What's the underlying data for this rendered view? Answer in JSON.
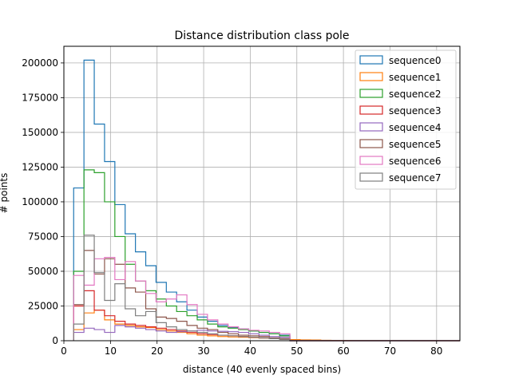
{
  "chart_data": {
    "type": "histogram",
    "title": "Distance distribution class pole",
    "xlabel": "distance (40 evenly spaced bins)",
    "ylabel": "# points",
    "xlim": [
      0,
      85
    ],
    "ylim": [
      0,
      212000
    ],
    "xticks": [
      0,
      10,
      20,
      30,
      40,
      50,
      60,
      70,
      80
    ],
    "yticks": [
      0,
      25000,
      50000,
      75000,
      100000,
      125000,
      150000,
      175000,
      200000
    ],
    "grid": true,
    "legend_position": "top-right",
    "bin_edges": [
      2.1,
      4.31,
      6.52,
      8.73,
      10.94,
      13.15,
      15.36,
      17.57,
      19.78,
      21.99,
      24.2,
      26.41,
      28.62,
      30.83,
      33.04,
      35.25,
      37.46,
      39.67,
      41.88,
      44.09,
      46.3,
      48.51,
      50.72,
      52.93,
      55.14,
      57.35,
      59.56,
      61.77,
      63.98,
      66.19,
      68.4,
      70.61,
      72.82,
      75.03,
      77.24,
      79.45,
      81.66,
      83.87,
      86.08,
      88.29,
      90.5
    ],
    "series": [
      {
        "name": "sequence0",
        "color": "#1f77b4",
        "values": [
          110000,
          202000,
          156000,
          129000,
          98000,
          77000,
          64000,
          54000,
          42000,
          35000,
          28000,
          22000,
          17000,
          14000,
          11000,
          9500,
          8500,
          7000,
          6000,
          5000,
          4000,
          0,
          0,
          0,
          0,
          0,
          0,
          0,
          0,
          0,
          0,
          0,
          0,
          0,
          0,
          0,
          0,
          0,
          0,
          0
        ]
      },
      {
        "name": "sequence1",
        "color": "#ff7f0e",
        "values": [
          8000,
          20000,
          22000,
          15000,
          12000,
          11000,
          10000,
          9500,
          8000,
          7000,
          6000,
          5000,
          4000,
          3500,
          3000,
          2700,
          2500,
          2200,
          1900,
          1600,
          1300,
          800,
          600,
          500,
          300,
          200,
          150,
          100,
          80,
          60,
          50,
          40,
          30,
          20,
          10,
          5,
          0,
          0,
          0,
          0
        ]
      },
      {
        "name": "sequence2",
        "color": "#2ca02c",
        "values": [
          50000,
          123000,
          121000,
          100000,
          75000,
          55000,
          43000,
          36000,
          30000,
          25000,
          21000,
          18000,
          15000,
          12000,
          10000,
          9000,
          8000,
          7000,
          6000,
          5000,
          3500,
          0,
          0,
          0,
          0,
          0,
          0,
          0,
          0,
          0,
          0,
          0,
          0,
          0,
          0,
          0,
          0,
          0,
          0,
          0
        ]
      },
      {
        "name": "sequence3",
        "color": "#d62728",
        "values": [
          25000,
          36000,
          22000,
          18000,
          14000,
          12000,
          11000,
          10000,
          9000,
          8000,
          7000,
          6000,
          5000,
          4500,
          4000,
          3500,
          3000,
          2500,
          2000,
          1500,
          1000,
          0,
          0,
          0,
          0,
          0,
          0,
          0,
          0,
          0,
          0,
          0,
          0,
          0,
          0,
          0,
          0,
          0,
          0,
          0
        ]
      },
      {
        "name": "sequence4",
        "color": "#9467bd",
        "values": [
          6000,
          9000,
          8000,
          6000,
          11000,
          10000,
          9000,
          8000,
          7000,
          6000,
          6500,
          7000,
          7500,
          7000,
          6800,
          6500,
          6000,
          5000,
          4000,
          3000,
          2500,
          0,
          0,
          0,
          0,
          0,
          0,
          0,
          0,
          0,
          0,
          0,
          0,
          0,
          0,
          0,
          0,
          0,
          0,
          0
        ]
      },
      {
        "name": "sequence5",
        "color": "#8c564b",
        "values": [
          26000,
          65000,
          48000,
          59000,
          55000,
          38000,
          35000,
          23000,
          17000,
          16000,
          14000,
          11000,
          9000,
          8000,
          6000,
          5000,
          4000,
          3500,
          3000,
          2000,
          1500,
          0,
          0,
          0,
          0,
          0,
          0,
          0,
          0,
          0,
          0,
          0,
          0,
          0,
          0,
          0,
          0,
          0,
          0,
          0
        ]
      },
      {
        "name": "sequence6",
        "color": "#e377c2",
        "values": [
          47000,
          40000,
          59000,
          60000,
          44000,
          57000,
          43000,
          34000,
          28000,
          30000,
          33000,
          26000,
          19000,
          15000,
          12000,
          10000,
          8500,
          7500,
          7000,
          6000,
          5000,
          0,
          0,
          0,
          0,
          0,
          0,
          0,
          0,
          0,
          0,
          0,
          0,
          0,
          0,
          0,
          0,
          0,
          0,
          0
        ]
      },
      {
        "name": "sequence7",
        "color": "#7f7f7f",
        "values": [
          12000,
          76000,
          49000,
          29000,
          41000,
          23000,
          18000,
          21000,
          13000,
          10000,
          8000,
          7000,
          6000,
          5000,
          4000,
          3500,
          3000,
          2500,
          2000,
          1500,
          1000,
          0,
          0,
          0,
          0,
          0,
          0,
          0,
          0,
          0,
          0,
          0,
          0,
          0,
          0,
          0,
          0,
          0,
          0,
          0
        ]
      }
    ]
  }
}
